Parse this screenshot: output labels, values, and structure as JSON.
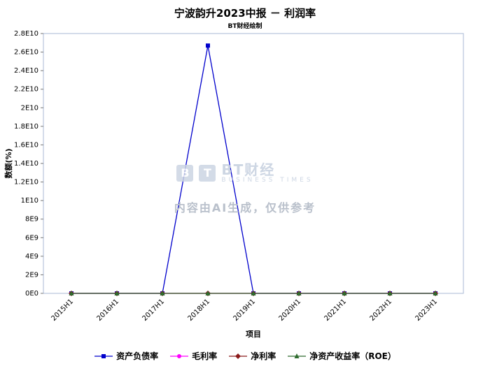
{
  "title": "宁波韵升2023中报 － 利润率",
  "subtitle": "BT财经绘制",
  "watermark": {
    "badge_letters": [
      "B",
      "T"
    ],
    "brand": "BT财经",
    "brand_sub": "BUSINESS TIMES",
    "disclaimer": "内容由AI生成，仅供参考"
  },
  "chart_data": {
    "type": "line",
    "title": "宁波韵升2023中报 － 利润率",
    "subtitle": "BT财经绘制",
    "xlabel": "项目",
    "ylabel": "数额(%)",
    "categories": [
      "2015H1",
      "2016H1",
      "2017H1",
      "2018H1",
      "2019H1",
      "2020H1",
      "2021H1",
      "2022H1",
      "2023H1"
    ],
    "series": [
      {
        "name": "资产负债率",
        "color": "#0000cc",
        "marker": "square",
        "values": [
          45,
          44,
          43,
          26700000000,
          42,
          41,
          42,
          43,
          44
        ]
      },
      {
        "name": "毛利率",
        "color": "#ff00ff",
        "marker": "circle",
        "values": [
          28,
          27,
          26,
          25,
          23,
          22,
          25,
          18,
          16
        ]
      },
      {
        "name": "净利率",
        "color": "#8b1a1a",
        "marker": "diamond",
        "values": [
          9,
          8,
          8,
          7,
          6,
          5,
          10,
          6,
          5
        ]
      },
      {
        "name": "净资产收益率（ROE）",
        "color": "#2e6b2e",
        "marker": "triangle",
        "values": [
          4,
          3,
          3,
          3,
          2,
          2,
          5,
          3,
          2
        ]
      }
    ],
    "ylim": [
      0,
      28000000000
    ],
    "ytick_step": 2000000000,
    "ytick_labels": [
      "0E0",
      "2E9",
      "4E9",
      "6E9",
      "8E9",
      "1E10",
      "1.2E10",
      "1.4E10",
      "1.6E10",
      "1.8E10",
      "2E10",
      "2.2E10",
      "2.4E10",
      "2.6E10",
      "2.8E10"
    ],
    "grid": false,
    "legend_position": "bottom"
  }
}
